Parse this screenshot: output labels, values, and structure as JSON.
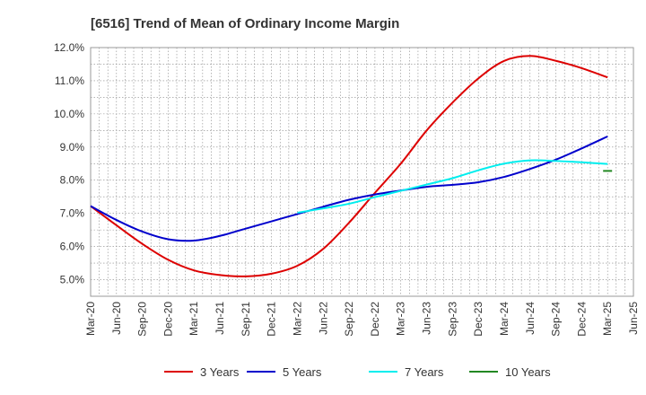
{
  "chart_data": {
    "type": "line",
    "title": "[6516]  Trend of Mean of Ordinary Income Margin",
    "xlabel": "",
    "ylabel": "",
    "x_ticks": [
      "Mar-20",
      "Jun-20",
      "Sep-20",
      "Dec-20",
      "Mar-21",
      "Jun-21",
      "Sep-21",
      "Dec-21",
      "Mar-22",
      "Jun-22",
      "Sep-22",
      "Dec-22",
      "Mar-23",
      "Jun-23",
      "Sep-23",
      "Dec-23",
      "Mar-24",
      "Jun-24",
      "Sep-24",
      "Dec-24",
      "Mar-25",
      "Jun-25"
    ],
    "y_ticks": [
      "5.0%",
      "6.0%",
      "7.0%",
      "8.0%",
      "9.0%",
      "10.0%",
      "11.0%",
      "12.0%"
    ],
    "ylim": [
      4.5,
      12.0
    ],
    "grid": true,
    "legend_position": "bottom",
    "series": [
      {
        "name": "3 Years",
        "color": "#dd0000",
        "x": [
          "Mar-20",
          "Jun-20",
          "Sep-20",
          "Dec-20",
          "Mar-21",
          "Jun-21",
          "Sep-21",
          "Dec-21",
          "Mar-22",
          "Jun-22",
          "Sep-22",
          "Dec-22",
          "Mar-23",
          "Jun-23",
          "Sep-23",
          "Dec-23",
          "Mar-24",
          "Jun-24",
          "Sep-24",
          "Dec-24",
          "Mar-25"
        ],
        "values": [
          7.22,
          6.64,
          6.08,
          5.6,
          5.28,
          5.14,
          5.1,
          5.18,
          5.42,
          5.93,
          6.72,
          7.62,
          8.5,
          9.5,
          10.34,
          11.07,
          11.6,
          11.75,
          11.6,
          11.38,
          11.1
        ]
      },
      {
        "name": "5 Years",
        "color": "#0000cc",
        "x": [
          "Mar-20",
          "Jun-20",
          "Sep-20",
          "Dec-20",
          "Mar-21",
          "Jun-21",
          "Sep-21",
          "Dec-21",
          "Mar-22",
          "Jun-22",
          "Sep-22",
          "Dec-22",
          "Mar-23",
          "Jun-23",
          "Sep-23",
          "Dec-23",
          "Mar-24",
          "Jun-24",
          "Sep-24",
          "Dec-24",
          "Mar-25"
        ],
        "values": [
          7.22,
          6.8,
          6.45,
          6.22,
          6.18,
          6.32,
          6.54,
          6.76,
          6.98,
          7.2,
          7.41,
          7.57,
          7.69,
          7.8,
          7.86,
          7.94,
          8.1,
          8.34,
          8.62,
          8.96,
          9.32
        ]
      },
      {
        "name": "7 Years",
        "color": "#00eeee",
        "x": [
          "Mar-22",
          "Jun-22",
          "Sep-22",
          "Dec-22",
          "Mar-23",
          "Jun-23",
          "Sep-23",
          "Dec-23",
          "Mar-24",
          "Jun-24",
          "Sep-24",
          "Dec-24",
          "Mar-25"
        ],
        "values": [
          7.02,
          7.15,
          7.29,
          7.49,
          7.68,
          7.87,
          8.06,
          8.3,
          8.5,
          8.6,
          8.58,
          8.54,
          8.49
        ]
      },
      {
        "name": "10 Years",
        "color": "#228822",
        "x": [
          "Mar-25"
        ],
        "values": [
          8.28
        ]
      }
    ]
  }
}
